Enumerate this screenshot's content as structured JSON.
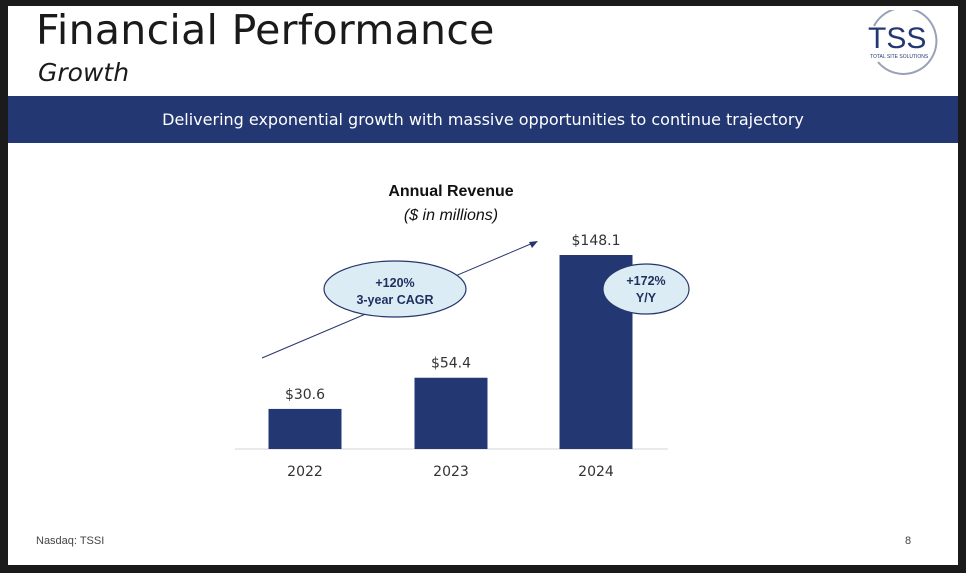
{
  "header": {
    "title": "Financial Performance",
    "subtitle": "Growth"
  },
  "logo": {
    "text": "TSS",
    "tagline": "TOTAL SITE SOLUTIONS",
    "color": "#233873"
  },
  "banner": {
    "text": "Delivering exponential growth with massive opportunities to continue trajectory",
    "color": "#233873"
  },
  "chart_data": {
    "type": "bar",
    "title": "Annual Revenue",
    "subtitle": "($ in millions)",
    "categories": [
      "2022",
      "2023",
      "2024"
    ],
    "values": [
      30.6,
      54.4,
      148.1
    ],
    "value_labels": [
      "$30.6",
      "$54.4",
      "$148.1"
    ],
    "bar_color": "#233873",
    "grid": false,
    "annotations": [
      {
        "lines": [
          "+120%",
          "3-year CAGR"
        ],
        "type": "trend-arrow"
      },
      {
        "lines": [
          "+172%",
          "Y/Y"
        ],
        "type": "bubble"
      }
    ]
  },
  "footer": {
    "left": "Nasdaq: TSSI",
    "page": "8"
  }
}
